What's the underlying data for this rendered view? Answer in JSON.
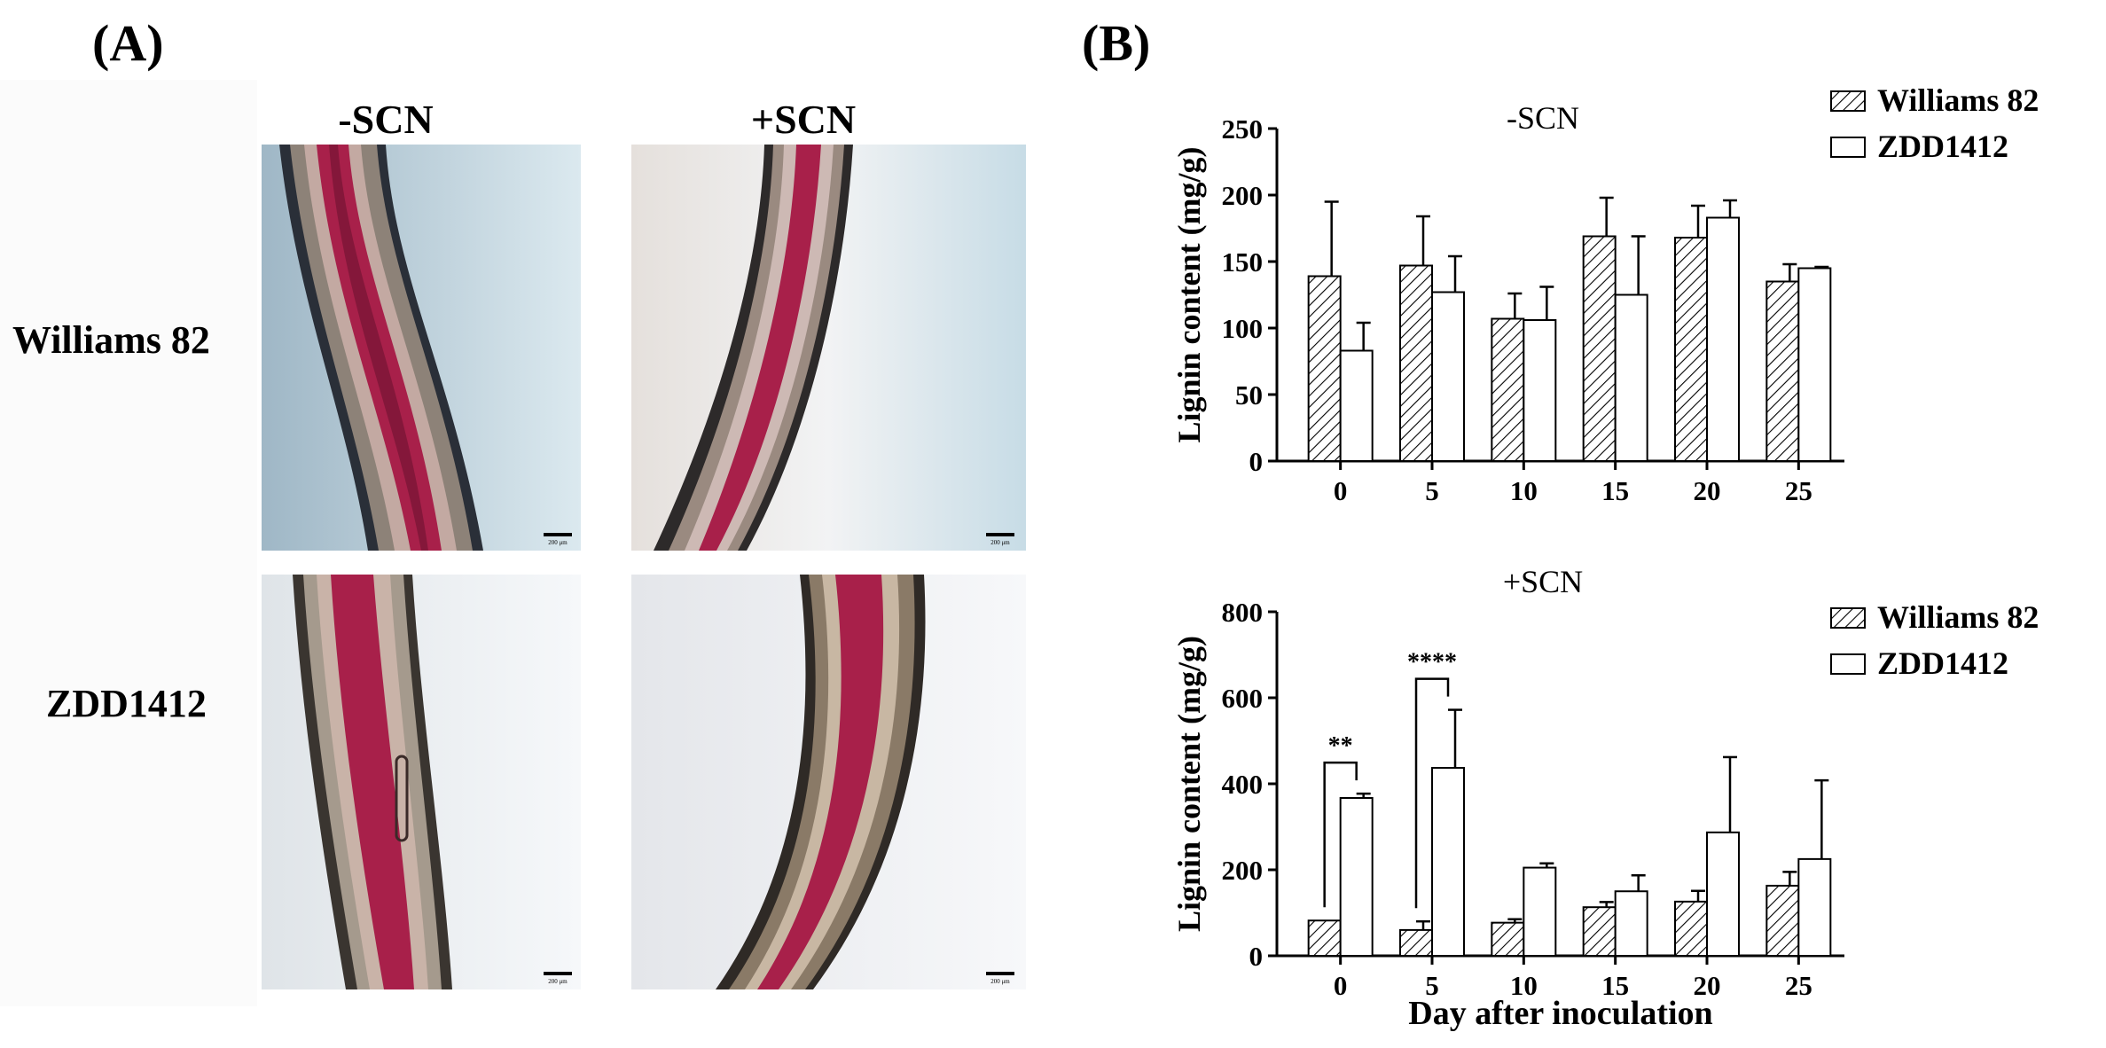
{
  "panels": {
    "a_label": "(A)",
    "b_label": "(B)"
  },
  "micrographs": {
    "col_minus": "-SCN",
    "col_plus": "+SCN",
    "row_williams": "Williams 82",
    "row_zdd": "ZDD1412",
    "scale_text": "200 μm"
  },
  "colors": {
    "stele": "#a8204a",
    "cortex": "#6b5a4e",
    "background_blue": "#c9dde6",
    "hatch": "#000000"
  },
  "chart_data": [
    {
      "type": "bar",
      "title": "-SCN",
      "xlabel": "",
      "ylabel": "Lignin content (mg/g)",
      "categories": [
        "0",
        "5",
        "10",
        "15",
        "20",
        "25"
      ],
      "ylim": [
        0,
        250
      ],
      "yticks": [
        "0",
        "50",
        "100",
        "150",
        "200",
        "250"
      ],
      "legend_position": "top-right",
      "series": [
        {
          "name": "Williams 82",
          "pattern": "hatched",
          "values": [
            139,
            147,
            107,
            169,
            168,
            135
          ],
          "errors": [
            56,
            37,
            19,
            29,
            24,
            13
          ]
        },
        {
          "name": "ZDD1412",
          "pattern": "open",
          "values": [
            83,
            127,
            106,
            125,
            183,
            145
          ],
          "errors": [
            21,
            27,
            25,
            44,
            13,
            1
          ]
        }
      ],
      "annotations": []
    },
    {
      "type": "bar",
      "title": "+SCN",
      "xlabel": "Day after inoculation",
      "ylabel": "Lignin content (mg/g)",
      "categories": [
        "0",
        "5",
        "10",
        "15",
        "20",
        "25"
      ],
      "ylim": [
        0,
        800
      ],
      "yticks": [
        "0",
        "200",
        "400",
        "600",
        "800"
      ],
      "legend_position": "top-right",
      "series": [
        {
          "name": "Williams 82",
          "pattern": "hatched",
          "values": [
            82,
            60,
            77,
            113,
            126,
            163
          ],
          "errors": [
            0,
            20,
            8,
            12,
            25,
            32
          ]
        },
        {
          "name": "ZDD1412",
          "pattern": "open",
          "values": [
            367,
            437,
            205,
            150,
            287,
            225
          ],
          "errors": [
            10,
            135,
            10,
            37,
            175,
            183
          ]
        }
      ],
      "annotations": [
        {
          "category": "0",
          "text": "**"
        },
        {
          "category": "5",
          "text": "****"
        }
      ]
    }
  ]
}
